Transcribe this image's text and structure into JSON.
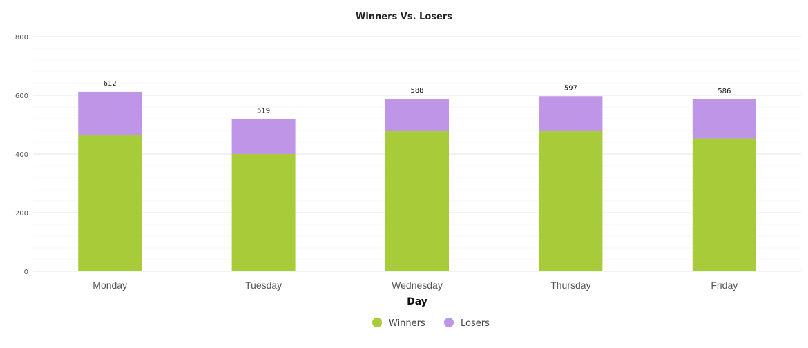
{
  "chart_data": {
    "type": "bar",
    "stacked": true,
    "title": "Winners Vs. Losers",
    "xlabel": "Day",
    "ylabel": "",
    "categories": [
      "Monday",
      "Tuesday",
      "Wednesday",
      "Thursday",
      "Friday"
    ],
    "series": [
      {
        "name": "Winners",
        "values": [
          465,
          400,
          480,
          480,
          453
        ],
        "color": "#a8cb3a"
      },
      {
        "name": "Losers",
        "values": [
          147,
          119,
          108,
          117,
          133
        ],
        "color": "#be95e7"
      }
    ],
    "totals": [
      612,
      519,
      588,
      597,
      586
    ],
    "total_labels": [
      "612",
      "519",
      "588",
      "597",
      "586"
    ],
    "ylim": [
      0,
      800
    ],
    "yticks": [
      0,
      200,
      400,
      600,
      800
    ],
    "ytick_labels": [
      "0",
      "200",
      "400",
      "600",
      "800"
    ],
    "grid": true,
    "legend": "bottom-center"
  }
}
